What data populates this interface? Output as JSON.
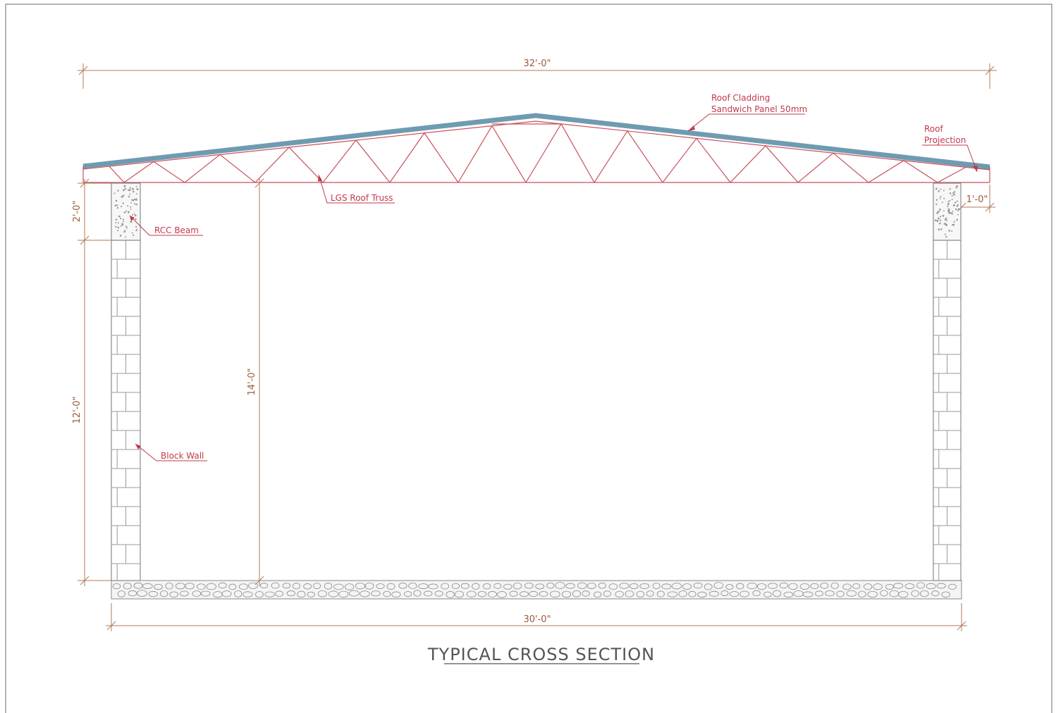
{
  "drawing": {
    "title": "TYPICAL CROSS SECTION",
    "dimensions": {
      "overall_roof_width": "32'-0\"",
      "base_width": "30'-0\"",
      "beam_height": "2'-0\"",
      "wall_height": "12'-0\"",
      "total_height": "14'-0\"",
      "projection_length": "1'-0\""
    },
    "labels": {
      "roof_cladding_line1": "Roof Cladding",
      "roof_cladding_line2": "Sandwich Panel 50mm",
      "roof_projection_line1": "Roof",
      "roof_projection_line2": "Projection",
      "lgs_roof_truss": "LGS Roof Truss",
      "rcc_beam": "RCC Beam",
      "block_wall": "Block Wall"
    },
    "colors": {
      "roof_cladding": "#6f9bb1",
      "truss": "#c9505c",
      "dimension": "#b07a55",
      "label": "#c0394b",
      "wall_lines": "#8a8a8a"
    }
  }
}
